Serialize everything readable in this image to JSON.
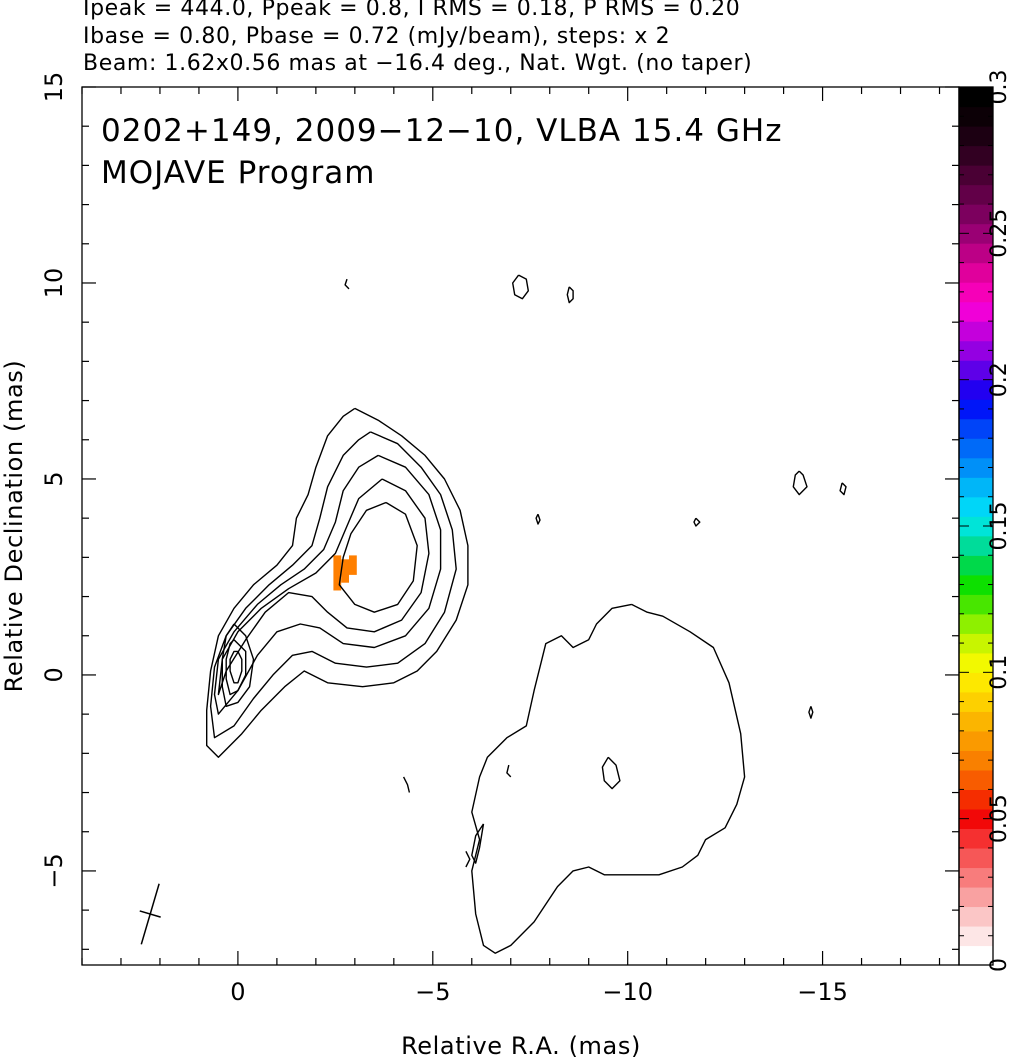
{
  "header": {
    "line1": "Ipeak = 444.0, Ppeak = 0.8, I RMS = 0.18, P RMS = 0.20",
    "line2": "Ibase = 0.80, Pbase = 0.72 (mJy/beam), steps: x 2",
    "line3": "Beam: 1.62x0.56 mas at −16.4 deg., Nat. Wgt. (no taper)"
  },
  "chart_data": {
    "type": "contour",
    "title_line1": "0202+149, 2009−12−10, VLBA 15.4 GHz",
    "title_line2": "MOJAVE Program",
    "xlabel": "Relative R.A. (mas)",
    "ylabel": "Relative Declination (mas)",
    "xlim": [
      4.0,
      -18.5
    ],
    "ylim": [
      -7.4,
      15.0
    ],
    "x_ticks": [
      {
        "value": 0,
        "label": "0"
      },
      {
        "value": -5,
        "label": "−5"
      },
      {
        "value": -10,
        "label": "−10"
      },
      {
        "value": -15,
        "label": "−15"
      }
    ],
    "y_ticks": [
      {
        "value": -5,
        "label": "−5"
      },
      {
        "value": 0,
        "label": "0"
      },
      {
        "value": 5,
        "label": "5"
      },
      {
        "value": 10,
        "label": "10"
      },
      {
        "value": 15,
        "label": "15"
      }
    ],
    "core": {
      "x": 0.0,
      "y": 0.6
    },
    "contours": [
      [
        [
          -3.0,
          6.8
        ],
        [
          -3.6,
          6.5
        ],
        [
          -4.2,
          6.1
        ],
        [
          -4.8,
          5.6
        ],
        [
          -5.3,
          5.0
        ],
        [
          -5.7,
          4.2
        ],
        [
          -5.9,
          3.3
        ],
        [
          -5.9,
          2.3
        ],
        [
          -5.6,
          1.4
        ],
        [
          -5.1,
          0.6
        ],
        [
          -4.6,
          0.1
        ],
        [
          -4.0,
          -0.2
        ],
        [
          -3.2,
          -0.3
        ],
        [
          -2.3,
          -0.2
        ],
        [
          -1.7,
          0.1
        ],
        [
          -1.2,
          -0.3
        ],
        [
          -0.6,
          -0.9
        ],
        [
          -0.1,
          -1.5
        ],
        [
          0.5,
          -2.1
        ],
        [
          0.8,
          -1.8
        ],
        [
          0.8,
          -0.9
        ],
        [
          0.7,
          0.1
        ],
        [
          0.5,
          1.0
        ],
        [
          0.1,
          1.7
        ],
        [
          -0.4,
          2.3
        ],
        [
          -1.0,
          2.8
        ],
        [
          -1.4,
          3.3
        ],
        [
          -1.5,
          4.0
        ],
        [
          -1.8,
          4.6
        ],
        [
          -2.0,
          5.3
        ],
        [
          -2.3,
          6.1
        ],
        [
          -2.7,
          6.6
        ],
        [
          -3.0,
          6.8
        ]
      ],
      [
        [
          -3.4,
          6.2
        ],
        [
          -4.1,
          5.9
        ],
        [
          -4.7,
          5.3
        ],
        [
          -5.2,
          4.6
        ],
        [
          -5.5,
          3.7
        ],
        [
          -5.6,
          2.7
        ],
        [
          -5.3,
          1.6
        ],
        [
          -4.8,
          0.8
        ],
        [
          -4.1,
          0.3
        ],
        [
          -3.3,
          0.2
        ],
        [
          -2.5,
          0.3
        ],
        [
          -1.9,
          0.6
        ],
        [
          -1.4,
          0.5
        ],
        [
          -0.9,
          0.0
        ],
        [
          -0.4,
          -0.6
        ],
        [
          0.1,
          -1.3
        ],
        [
          0.6,
          -1.6
        ],
        [
          0.7,
          -0.8
        ],
        [
          0.6,
          0.2
        ],
        [
          0.3,
          1.0
        ],
        [
          -0.2,
          1.7
        ],
        [
          -0.8,
          2.3
        ],
        [
          -1.4,
          2.8
        ],
        [
          -1.9,
          3.3
        ],
        [
          -2.1,
          4.0
        ],
        [
          -2.3,
          4.8
        ],
        [
          -2.7,
          5.6
        ],
        [
          -3.1,
          6.0
        ],
        [
          -3.4,
          6.2
        ]
      ],
      [
        [
          -3.6,
          5.6
        ],
        [
          -4.3,
          5.3
        ],
        [
          -4.9,
          4.6
        ],
        [
          -5.2,
          3.7
        ],
        [
          -5.2,
          2.7
        ],
        [
          -4.9,
          1.7
        ],
        [
          -4.3,
          1.0
        ],
        [
          -3.5,
          0.7
        ],
        [
          -2.7,
          0.8
        ],
        [
          -2.1,
          1.2
        ],
        [
          -1.6,
          1.3
        ],
        [
          -1.0,
          1.1
        ],
        [
          -0.5,
          0.5
        ],
        [
          0.0,
          -0.4
        ],
        [
          0.5,
          -1.0
        ],
        [
          0.6,
          -0.5
        ],
        [
          0.5,
          0.4
        ],
        [
          0.1,
          1.1
        ],
        [
          -0.5,
          1.8
        ],
        [
          -1.1,
          2.3
        ],
        [
          -1.7,
          2.7
        ],
        [
          -2.2,
          3.2
        ],
        [
          -2.5,
          3.9
        ],
        [
          -2.7,
          4.7
        ],
        [
          -3.1,
          5.3
        ],
        [
          -3.6,
          5.6
        ]
      ],
      [
        [
          -3.7,
          5.0
        ],
        [
          -4.3,
          4.7
        ],
        [
          -4.8,
          4.0
        ],
        [
          -4.9,
          3.1
        ],
        [
          -4.7,
          2.1
        ],
        [
          -4.2,
          1.4
        ],
        [
          -3.5,
          1.1
        ],
        [
          -2.8,
          1.2
        ],
        [
          -2.3,
          1.6
        ],
        [
          -1.9,
          2.0
        ],
        [
          -1.3,
          2.1
        ],
        [
          -0.7,
          1.6
        ],
        [
          -0.2,
          0.9
        ],
        [
          0.3,
          0.1
        ],
        [
          0.5,
          -0.5
        ],
        [
          0.4,
          0.4
        ],
        [
          0.0,
          1.1
        ],
        [
          -0.6,
          1.7
        ],
        [
          -1.3,
          2.2
        ],
        [
          -2.0,
          2.6
        ],
        [
          -2.5,
          3.1
        ],
        [
          -2.8,
          3.8
        ],
        [
          -3.1,
          4.5
        ],
        [
          -3.7,
          5.0
        ]
      ],
      [
        [
          -3.8,
          4.4
        ],
        [
          -4.3,
          4.1
        ],
        [
          -4.6,
          3.3
        ],
        [
          -4.5,
          2.4
        ],
        [
          -4.1,
          1.8
        ],
        [
          -3.5,
          1.6
        ],
        [
          -3.0,
          1.8
        ],
        [
          -2.6,
          2.3
        ],
        [
          -2.7,
          3.0
        ],
        [
          -2.9,
          3.6
        ],
        [
          -3.3,
          4.2
        ],
        [
          -3.8,
          4.4
        ]
      ],
      [
        [
          0.1,
          1.3
        ],
        [
          -0.2,
          1.0
        ],
        [
          -0.4,
          0.4
        ],
        [
          -0.3,
          -0.3
        ],
        [
          0.0,
          -0.7
        ],
        [
          0.3,
          -0.8
        ],
        [
          0.4,
          -0.3
        ],
        [
          0.4,
          0.4
        ],
        [
          0.3,
          1.0
        ],
        [
          0.1,
          1.3
        ]
      ],
      [
        [
          0.1,
          0.9
        ],
        [
          -0.2,
          0.6
        ],
        [
          -0.2,
          0.0
        ],
        [
          0.0,
          -0.4
        ],
        [
          0.2,
          -0.5
        ],
        [
          0.3,
          -0.1
        ],
        [
          0.3,
          0.4
        ],
        [
          0.2,
          0.8
        ],
        [
          0.1,
          0.9
        ]
      ],
      [
        [
          0.0,
          0.6
        ],
        [
          -0.1,
          0.4
        ],
        [
          -0.1,
          0.1
        ],
        [
          0.0,
          -0.2
        ],
        [
          0.1,
          -0.2
        ],
        [
          0.2,
          0.1
        ],
        [
          0.2,
          0.4
        ],
        [
          0.1,
          0.6
        ],
        [
          0.0,
          0.6
        ]
      ],
      [
        [
          -10.1,
          1.8
        ],
        [
          -9.6,
          1.7
        ],
        [
          -9.2,
          1.3
        ],
        [
          -9.0,
          0.9
        ],
        [
          -8.6,
          0.7
        ],
        [
          -8.3,
          1.0
        ],
        [
          -7.9,
          0.8
        ],
        [
          -7.8,
          0.4
        ],
        [
          -7.6,
          -0.4
        ],
        [
          -7.4,
          -1.3
        ],
        [
          -6.9,
          -1.6
        ],
        [
          -6.4,
          -2.1
        ],
        [
          -6.2,
          -2.6
        ],
        [
          -6.0,
          -3.5
        ],
        [
          -6.2,
          -4.2
        ],
        [
          -6.0,
          -5.0
        ],
        [
          -6.1,
          -6.1
        ],
        [
          -6.3,
          -6.9
        ],
        [
          -6.6,
          -7.1
        ],
        [
          -7.0,
          -6.9
        ],
        [
          -7.6,
          -6.3
        ],
        [
          -8.2,
          -5.4
        ],
        [
          -8.6,
          -5.0
        ],
        [
          -9.0,
          -4.9
        ],
        [
          -9.4,
          -5.1
        ],
        [
          -10.1,
          -5.1
        ],
        [
          -10.8,
          -5.1
        ],
        [
          -11.4,
          -4.9
        ],
        [
          -11.8,
          -4.6
        ],
        [
          -12.0,
          -4.2
        ],
        [
          -12.5,
          -3.9
        ],
        [
          -12.8,
          -3.3
        ],
        [
          -13.0,
          -2.6
        ],
        [
          -12.9,
          -1.5
        ],
        [
          -12.6,
          -0.2
        ],
        [
          -12.2,
          0.7
        ],
        [
          -11.6,
          1.1
        ],
        [
          -10.9,
          1.5
        ],
        [
          -10.5,
          1.6
        ],
        [
          -10.1,
          1.8
        ]
      ],
      [
        [
          -9.5,
          -2.1
        ],
        [
          -9.7,
          -2.3
        ],
        [
          -9.8,
          -2.7
        ],
        [
          -9.6,
          -2.9
        ],
        [
          -9.4,
          -2.7
        ],
        [
          -9.35,
          -2.35
        ],
        [
          -9.5,
          -2.1
        ]
      ],
      [
        [
          -7.2,
          10.2
        ],
        [
          -7.4,
          10.1
        ],
        [
          -7.45,
          9.8
        ],
        [
          -7.3,
          9.6
        ],
        [
          -7.1,
          9.7
        ],
        [
          -7.05,
          10.0
        ],
        [
          -7.2,
          10.2
        ]
      ],
      [
        [
          -8.5,
          9.9
        ],
        [
          -8.6,
          9.8
        ],
        [
          -8.6,
          9.6
        ],
        [
          -8.5,
          9.5
        ],
        [
          -8.45,
          9.7
        ],
        [
          -8.5,
          9.9
        ]
      ],
      [
        [
          -14.4,
          5.2
        ],
        [
          -14.5,
          5.1
        ],
        [
          -14.6,
          4.8
        ],
        [
          -14.4,
          4.6
        ],
        [
          -14.25,
          4.8
        ],
        [
          -14.3,
          5.1
        ],
        [
          -14.4,
          5.2
        ]
      ],
      [
        [
          -15.5,
          4.9
        ],
        [
          -15.6,
          4.8
        ],
        [
          -15.55,
          4.6
        ],
        [
          -15.45,
          4.7
        ],
        [
          -15.5,
          4.9
        ]
      ],
      [
        [
          -7.7,
          4.1
        ],
        [
          -7.75,
          3.95
        ],
        [
          -7.7,
          3.85
        ],
        [
          -7.65,
          4.0
        ],
        [
          -7.7,
          4.1
        ]
      ],
      [
        [
          -11.75,
          4.0
        ],
        [
          -11.85,
          3.9
        ],
        [
          -11.75,
          3.8
        ],
        [
          -11.7,
          3.9
        ],
        [
          -11.75,
          4.0
        ]
      ],
      [
        [
          -14.7,
          -0.8
        ],
        [
          -14.75,
          -0.95
        ],
        [
          -14.7,
          -1.1
        ],
        [
          -14.65,
          -0.95
        ],
        [
          -14.7,
          -0.8
        ]
      ],
      [
        [
          -6.3,
          -3.8
        ],
        [
          -6.1,
          -4.1
        ],
        [
          -6.0,
          -4.6
        ],
        [
          -6.1,
          -4.8
        ],
        [
          -6.2,
          -4.4
        ],
        [
          -6.3,
          -3.8
        ]
      ],
      [
        [
          -2.8,
          10.1
        ],
        [
          -2.75,
          9.95
        ],
        [
          -2.85,
          9.85
        ]
      ],
      [
        [
          -4.25,
          -2.6
        ],
        [
          -4.35,
          -2.8
        ],
        [
          -4.4,
          -3.0
        ]
      ],
      [
        [
          -6.95,
          -2.3
        ],
        [
          -6.9,
          -2.5
        ],
        [
          -7.0,
          -2.6
        ]
      ],
      [
        [
          -5.85,
          -4.5
        ],
        [
          -5.95,
          -4.7
        ],
        [
          -5.85,
          -4.9
        ]
      ]
    ],
    "polarization_pixels": [
      {
        "x": -2.45,
        "y": 2.15,
        "w": 0.2,
        "h": 0.9
      },
      {
        "x": -2.65,
        "y": 2.35,
        "w": 0.2,
        "h": 0.6
      },
      {
        "x": -2.85,
        "y": 2.55,
        "w": 0.2,
        "h": 0.5
      }
    ],
    "polarization_color": "#ff7f00",
    "beam": {
      "x": 2.25,
      "y": -6.1,
      "major": 1.62,
      "minor": 0.56,
      "pa": -16.4
    },
    "colorbar": {
      "min": 0,
      "max": 0.3,
      "ticks": [
        {
          "value": 0,
          "label": "0"
        },
        {
          "value": 0.05,
          "label": "0.05"
        },
        {
          "value": 0.1,
          "label": "0.1"
        },
        {
          "value": 0.15,
          "label": "0.15"
        },
        {
          "value": 0.2,
          "label": "0.2"
        },
        {
          "value": 0.25,
          "label": "0.25"
        },
        {
          "value": 0.3,
          "label": "0.3"
        }
      ],
      "colors": [
        "#ffffff",
        "#fde6e6",
        "#fbc6c6",
        "#f9a1a1",
        "#f87c7c",
        "#f65757",
        "#f53030",
        "#f20808",
        "#f52d00",
        "#f85c00",
        "#f98000",
        "#fa9a00",
        "#fbb500",
        "#fdd000",
        "#fde800",
        "#f2f900",
        "#c8f500",
        "#8ef000",
        "#48e600",
        "#0de000",
        "#00d94a",
        "#00dc9a",
        "#00e4d8",
        "#00d6f8",
        "#00b6f8",
        "#0090f8",
        "#006af8",
        "#0044f8",
        "#0016f8",
        "#2200f0",
        "#5e00e8",
        "#9400e2",
        "#c400dc",
        "#f000d8",
        "#f600b8",
        "#e0009c",
        "#bc0086",
        "#9a0074",
        "#7c005e",
        "#620048",
        "#4a0034",
        "#320022",
        "#1c0012",
        "#0c0006",
        "#000000"
      ]
    }
  }
}
